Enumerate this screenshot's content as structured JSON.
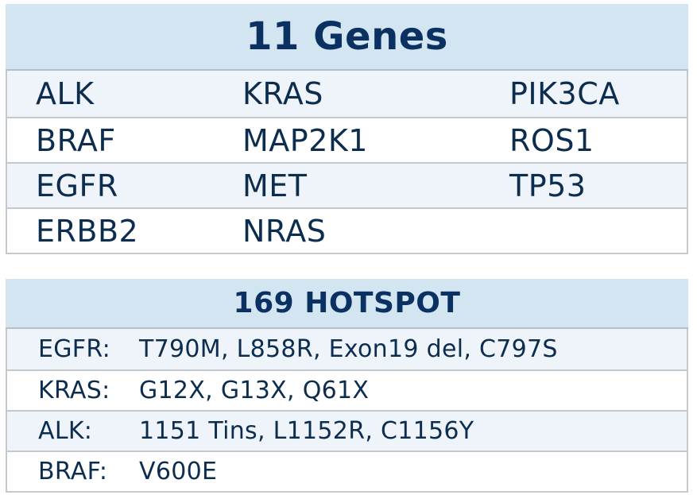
{
  "genes_table": {
    "title": "11 Genes",
    "rows": [
      [
        "ALK",
        "KRAS",
        "PIK3CA"
      ],
      [
        "BRAF",
        "MAP2K1",
        "ROS1"
      ],
      [
        "EGFR",
        "MET",
        "TP53"
      ],
      [
        "ERBB2",
        "NRAS",
        ""
      ]
    ]
  },
  "hotspot_table": {
    "title": "169 HOTSPOT",
    "rows": [
      {
        "gene": "EGFR:",
        "mutations": "T790M, L858R, Exon19 del, C797S"
      },
      {
        "gene": "KRAS:",
        "mutations": "G12X, G13X, Q61X"
      },
      {
        "gene": "ALK:",
        "mutations": "1151 Tins, L1152R, C1156Y"
      },
      {
        "gene": "BRAF:",
        "mutations": "V600E"
      }
    ]
  },
  "colors": {
    "header_bg": "#d3e5f1",
    "alt_row_bg": "#eef4f9",
    "text": "#0d2d4f"
  }
}
